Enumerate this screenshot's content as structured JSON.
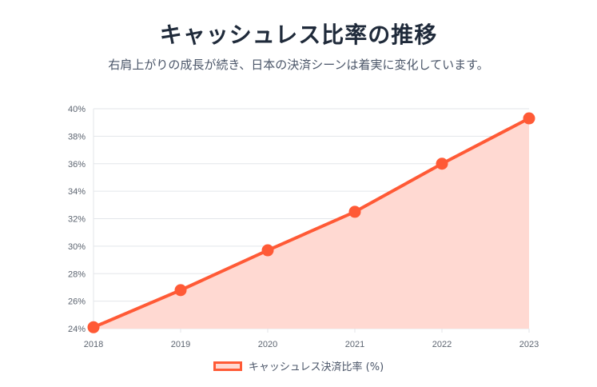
{
  "chart_data": {
    "type": "area",
    "title": "キャッシュレス比率の推移",
    "subtitle": "右肩上がりの成長が続き、日本の決済シーンは着実に変化しています。",
    "x": [
      "2018",
      "2019",
      "2020",
      "2021",
      "2022",
      "2023"
    ],
    "series": [
      {
        "name": "キャッシュレス決済比率 (%)",
        "values": [
          24.1,
          26.8,
          29.7,
          32.5,
          36.0,
          39.3
        ]
      }
    ],
    "ylim": [
      24,
      40
    ],
    "yticks": [
      24,
      26,
      28,
      30,
      32,
      34,
      36,
      38,
      40
    ],
    "ytick_suffix": "%",
    "grid": true,
    "legend": "bottom",
    "colors": {
      "line": "#ff5a36",
      "fill": "#ffd9d2",
      "grid": "#e3e6ea"
    }
  }
}
